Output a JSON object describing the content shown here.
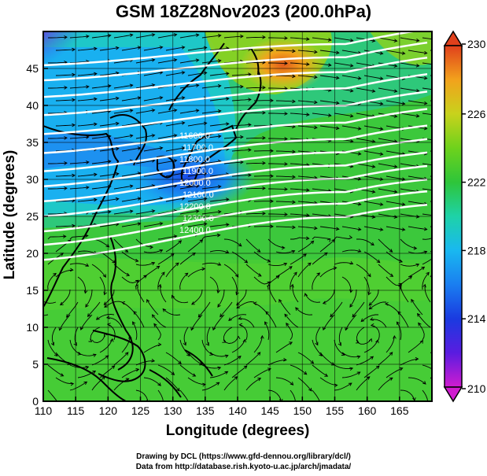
{
  "title": "GSM 18Z28Nov2023 (200.0hPa)",
  "map": {
    "xlabel": "Longitude (degrees)",
    "ylabel": "Latitude  (degrees)",
    "lon_ticks": [
      "110",
      "115",
      "120",
      "125",
      "130",
      "135",
      "140",
      "145",
      "150",
      "155",
      "160",
      "165"
    ],
    "lat_ticks": [
      "0",
      "5",
      "10",
      "15",
      "20",
      "25",
      "30",
      "35",
      "40",
      "45"
    ],
    "lon_range": [
      110,
      170
    ],
    "lat_range": [
      0,
      50
    ],
    "contour_labels": [
      "11600.0",
      "11700.0",
      "11800.0",
      "11900.0",
      "12000.0",
      "12100.0",
      "12200.0",
      "12300.0",
      "12400.0"
    ],
    "colorbar": {
      "ticks": [
        "230",
        "226",
        "222",
        "218",
        "214",
        "210"
      ],
      "range": [
        210,
        230
      ]
    }
  },
  "credits": {
    "line1": "Drawing by DCL (https://www.gfd-dennou.org/library/dcl/)",
    "line2": "Data from http://database.rish.kyoto-u.ac.jp/arch/jmadata/"
  },
  "colors": {
    "low": "#d01cd0",
    "cold": "#1a3ae0",
    "cool": "#19b8f0",
    "mid": "#2ec53a",
    "warm": "#f2c21c",
    "hot": "#e0401c"
  }
}
